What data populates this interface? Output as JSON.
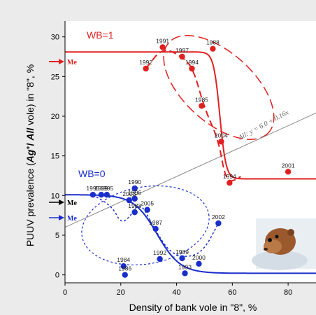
{
  "chart_data": {
    "type": "scatter",
    "xlabel": "Density of bank vole in \"8\", %",
    "ylabel_parts": [
      "PUUV prevalence (",
      "Ag",
      "+",
      "/ ",
      "All",
      " vole) in \"8\", %"
    ],
    "xlim": [
      0,
      90
    ],
    "ylim": [
      -1,
      32
    ],
    "xticks": [
      0,
      20,
      40,
      60,
      80
    ],
    "yticks": [
      0,
      5,
      10,
      15,
      20,
      25,
      30
    ],
    "grid": false,
    "colors": {
      "wb1": "#e02020",
      "wb0": "#1a2ecc",
      "all": "#777777",
      "me_black": "#000000"
    },
    "groups": [
      {
        "name": "WB=1",
        "color": "#e02020",
        "points": [
          {
            "x": 29,
            "y": 26,
            "label": "1992"
          },
          {
            "x": 35,
            "y": 28.7,
            "label": "1991"
          },
          {
            "x": 42,
            "y": 27.5,
            "label": "1997"
          },
          {
            "x": 45.5,
            "y": 26,
            "label": "1994"
          },
          {
            "x": 53,
            "y": 28.5,
            "label": "1988"
          },
          {
            "x": 49,
            "y": 21.3,
            "label": "1985"
          },
          {
            "x": 56,
            "y": 16.8,
            "label": "2004"
          },
          {
            "x": 59,
            "y": 11.6,
            "label": "1994"
          },
          {
            "x": 80,
            "y": 13,
            "label": "2001"
          }
        ],
        "fit_curve": {
          "upper": 28.1,
          "lower": 12.1,
          "midpoint": 55.5,
          "steepness": 0.9
        },
        "mean_label": "Me",
        "mean_y": 26.2
      },
      {
        "name": "WB=0",
        "color": "#1a2ecc",
        "points": [
          {
            "x": 10,
            "y": 10.1,
            "label": "1995"
          },
          {
            "x": 13,
            "y": 10.1,
            "label": "1999"
          },
          {
            "x": 15,
            "y": 10.1,
            "label": "1995"
          },
          {
            "x": 23,
            "y": 9.4,
            "label": "2003"
          },
          {
            "x": 25,
            "y": 10.9,
            "label": "1990"
          },
          {
            "x": 25,
            "y": 9.6,
            "label": "1996"
          },
          {
            "x": 25,
            "y": 7.9,
            "label": "1983"
          },
          {
            "x": 29.5,
            "y": 8.2,
            "label": "2005"
          },
          {
            "x": 32.5,
            "y": 5.8,
            "label": "1987"
          },
          {
            "x": 34,
            "y": 2,
            "label": "1992"
          },
          {
            "x": 42,
            "y": 2.1,
            "label": "1989"
          },
          {
            "x": 48,
            "y": 1.4,
            "label": "2000"
          },
          {
            "x": 21,
            "y": 1.1,
            "label": "1984"
          },
          {
            "x": 21.5,
            "y": 0,
            "label": "1986"
          },
          {
            "x": 43,
            "y": 0.2,
            "label": "1993"
          },
          {
            "x": 55,
            "y": 6.5,
            "label": "2002"
          }
        ],
        "fit_curve": {
          "upper": 10.1,
          "lower": 0.2,
          "midpoint": 33,
          "steepness": 0.24
        },
        "mean_label": "Me",
        "mean_y": 7.3
      }
    ],
    "all_line": {
      "label": "All: y = 6.0 + 0.16x",
      "intercept": 6.0,
      "slope": 0.16
    },
    "black_mean_label": "Me",
    "black_mean_y": 9.2
  }
}
